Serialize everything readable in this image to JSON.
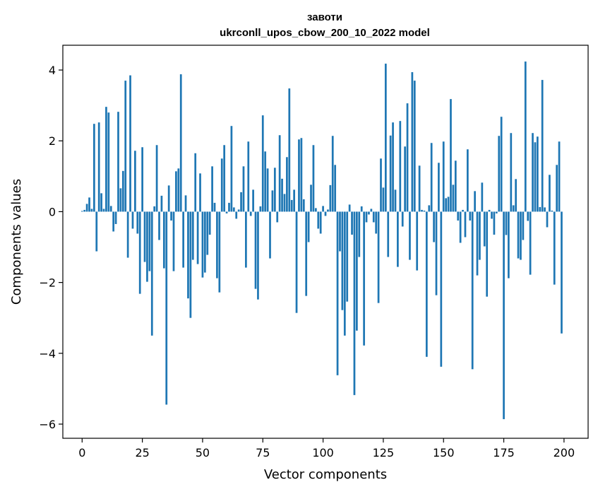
{
  "chart_data": {
    "type": "bar",
    "title": "завоти",
    "subtitle": "ukrconll_upos_cbow_200_10_2022 model",
    "xlabel": "Vector components",
    "ylabel": "Components values",
    "xlim": [
      -8,
      210
    ],
    "ylim": [
      -6.4,
      4.7
    ],
    "xticks": [
      0,
      25,
      50,
      75,
      100,
      125,
      150,
      175,
      200
    ],
    "yticks": [
      -6,
      -4,
      -2,
      0,
      2,
      4
    ],
    "ytick_labels": [
      "−6",
      "−4",
      "−2",
      "0",
      "2",
      "4"
    ],
    "grid": false,
    "bar_color": "#1f77b4",
    "x": [
      0,
      1,
      2,
      3,
      4,
      5,
      6,
      7,
      8,
      9,
      10,
      11,
      12,
      13,
      14,
      15,
      16,
      17,
      18,
      19,
      20,
      21,
      22,
      23,
      24,
      25,
      26,
      27,
      28,
      29,
      30,
      31,
      32,
      33,
      34,
      35,
      36,
      37,
      38,
      39,
      40,
      41,
      42,
      43,
      44,
      45,
      46,
      47,
      48,
      49,
      50,
      51,
      52,
      53,
      54,
      55,
      56,
      57,
      58,
      59,
      60,
      61,
      62,
      63,
      64,
      65,
      66,
      67,
      68,
      69,
      70,
      71,
      72,
      73,
      74,
      75,
      76,
      77,
      78,
      79,
      80,
      81,
      82,
      83,
      84,
      85,
      86,
      87,
      88,
      89,
      90,
      91,
      92,
      93,
      94,
      95,
      96,
      97,
      98,
      99,
      100,
      101,
      102,
      103,
      104,
      105,
      106,
      107,
      108,
      109,
      110,
      111,
      112,
      113,
      114,
      115,
      116,
      117,
      118,
      119,
      120,
      121,
      122,
      123,
      124,
      125,
      126,
      127,
      128,
      129,
      130,
      131,
      132,
      133,
      134,
      135,
      136,
      137,
      138,
      139,
      140,
      141,
      142,
      143,
      144,
      145,
      146,
      147,
      148,
      149,
      150,
      151,
      152,
      153,
      154,
      155,
      156,
      157,
      158,
      159,
      160,
      161,
      162,
      163,
      164,
      165,
      166,
      167,
      168,
      169,
      170,
      171,
      172,
      173,
      174,
      175,
      176,
      177,
      178,
      179,
      180,
      181,
      182,
      183,
      184,
      185,
      186,
      187,
      188,
      189,
      190,
      191,
      192,
      193,
      194,
      195,
      196,
      197,
      198,
      199
    ],
    "values": [
      0.02,
      0.05,
      0.22,
      0.4,
      0.08,
      2.48,
      -1.12,
      2.52,
      0.52,
      0.08,
      2.96,
      2.8,
      0.16,
      -0.56,
      -0.35,
      2.82,
      0.66,
      1.15,
      3.7,
      -1.3,
      3.85,
      -0.48,
      1.72,
      -0.62,
      -2.32,
      1.82,
      -1.42,
      -1.98,
      -1.68,
      -3.5,
      0.15,
      1.88,
      -0.8,
      0.45,
      -1.6,
      -5.45,
      0.74,
      -0.25,
      -1.68,
      1.14,
      1.22,
      3.88,
      -1.58,
      0.46,
      -2.45,
      -3.0,
      -1.36,
      1.65,
      -1.48,
      1.08,
      -1.86,
      -1.72,
      -1.22,
      -0.65,
      1.28,
      0.25,
      -1.88,
      -2.28,
      1.5,
      1.88,
      -0.05,
      0.25,
      2.42,
      0.12,
      -0.2,
      0.06,
      0.55,
      1.28,
      -1.58,
      1.98,
      -0.12,
      0.62,
      -2.18,
      -2.48,
      0.15,
      2.72,
      1.7,
      1.22,
      -1.32,
      0.6,
      1.24,
      -0.3,
      2.16,
      0.93,
      0.5,
      1.54,
      3.48,
      0.33,
      0.62,
      -2.86,
      2.04,
      2.08,
      0.35,
      -2.38,
      -0.86,
      0.76,
      1.88,
      0.1,
      -0.48,
      -0.62,
      0.16,
      -0.12,
      0.06,
      0.75,
      2.14,
      1.32,
      -4.62,
      -1.12,
      -2.78,
      -3.5,
      -2.54,
      0.2,
      -0.65,
      -5.18,
      -3.36,
      -1.28,
      0.15,
      -3.78,
      -0.3,
      -0.08,
      0.08,
      -0.3,
      -0.62,
      -2.58,
      1.5,
      0.68,
      4.18,
      -1.28,
      2.15,
      2.52,
      0.62,
      -1.56,
      2.56,
      -0.42,
      1.84,
      3.06,
      -1.36,
      3.94,
      3.7,
      -1.66,
      1.3,
      0.05,
      0.03,
      -4.1,
      0.18,
      1.94,
      -0.86,
      -2.36,
      1.38,
      -4.38,
      1.98,
      0.38,
      0.42,
      3.18,
      0.76,
      1.44,
      -0.25,
      -0.88,
      0.05,
      -0.72,
      1.76,
      -0.25,
      -4.45,
      0.58,
      -1.8,
      -1.36,
      0.82,
      -0.98,
      -2.4,
      0.05,
      -0.2,
      -0.65,
      -0.05,
      2.14,
      2.68,
      -5.86,
      -0.66,
      -1.88,
      2.22,
      0.18,
      0.92,
      -1.32,
      -1.36,
      -0.8,
      4.24,
      -0.26,
      -1.78,
      2.22,
      1.96,
      2.12,
      0.13,
      3.72,
      0.12,
      -0.44,
      1.04,
      0.03,
      -2.06,
      1.32,
      1.98,
      -3.44
    ]
  }
}
